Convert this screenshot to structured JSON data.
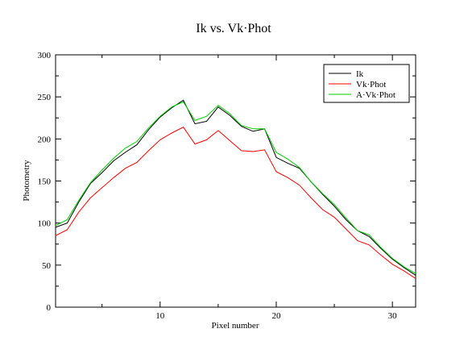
{
  "chart_data": {
    "type": "line",
    "title": "Ik vs. Vk·Phot",
    "xlabel": "Pixel number",
    "ylabel": "Photometry",
    "xlim": [
      1,
      32
    ],
    "ylim": [
      0,
      300
    ],
    "x_ticks": [
      10,
      20,
      30
    ],
    "y_ticks": [
      0,
      50,
      100,
      150,
      200,
      250,
      300
    ],
    "grid": false,
    "legend_position": "top-right",
    "x": [
      1,
      2,
      3,
      4,
      5,
      6,
      7,
      8,
      9,
      10,
      11,
      12,
      13,
      14,
      15,
      16,
      17,
      18,
      19,
      20,
      21,
      22,
      23,
      24,
      25,
      26,
      27,
      28,
      29,
      30,
      31,
      32
    ],
    "series": [
      {
        "name": "Ik",
        "color": "#000000",
        "values": [
          95,
          100,
          125,
          147,
          160,
          174,
          184,
          193,
          211,
          226,
          237,
          246,
          218,
          221,
          238,
          228,
          215,
          209,
          212,
          178,
          171,
          165,
          149,
          134,
          120,
          104,
          91,
          84,
          70,
          57,
          47,
          38
        ]
      },
      {
        "name": "Vk·Phot",
        "color": "#ff0000",
        "values": [
          85,
          92,
          113,
          130,
          142,
          154,
          165,
          172,
          186,
          199,
          207,
          214,
          194,
          199,
          210,
          198,
          186,
          185,
          187,
          161,
          154,
          145,
          130,
          116,
          107,
          93,
          79,
          74,
          62,
          51,
          43,
          34
        ]
      },
      {
        "name": "A·Vk·Phot",
        "color": "#00cc00",
        "values": [
          97,
          104,
          127,
          148,
          163,
          177,
          189,
          197,
          213,
          227,
          238,
          244,
          222,
          227,
          240,
          230,
          216,
          212,
          212,
          184,
          176,
          166,
          149,
          135,
          122,
          106,
          91,
          86,
          71,
          58,
          48,
          40
        ]
      }
    ]
  }
}
